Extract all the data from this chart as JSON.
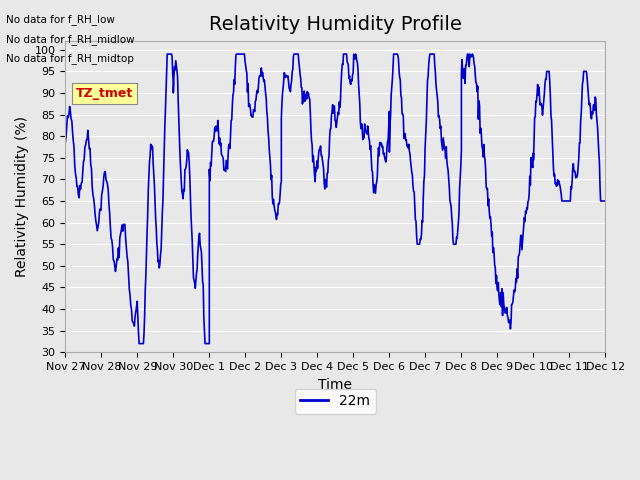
{
  "title": "Relativity Humidity Profile",
  "ylabel": "Relativity Humidity (%)",
  "xlabel": "Time",
  "ylim": [
    30,
    102
  ],
  "yticks": [
    30,
    35,
    40,
    45,
    50,
    55,
    60,
    65,
    70,
    75,
    80,
    85,
    90,
    95,
    100
  ],
  "line_color": "#0000CC",
  "line_width": 1.2,
  "bg_color": "#E8E8E8",
  "plot_bg_color": "#E8E8E8",
  "legend_label": "22m",
  "legend_line_color": "#0000CC",
  "no_data_texts": [
    "No data for f_RH_low",
    "No data for f_RH_midlow",
    "No data for f_RH_midtop"
  ],
  "tz_label": "TZ_tmet",
  "tz_label_color": "#CC0000",
  "tz_box_color": "#FFFF99",
  "x_tick_labels": [
    "Nov 27",
    "Nov 28",
    "Nov 29",
    "Nov 30",
    "Dec 1",
    "Dec 2",
    "Dec 3",
    "Dec 4",
    "Dec 5",
    "Dec 6",
    "Dec 7",
    "Dec 8",
    "Dec 9",
    "Dec 10",
    "Dec 11",
    "Dec 12"
  ],
  "grid_color": "#FFFFFF",
  "title_fontsize": 14,
  "label_fontsize": 10,
  "tick_fontsize": 8
}
